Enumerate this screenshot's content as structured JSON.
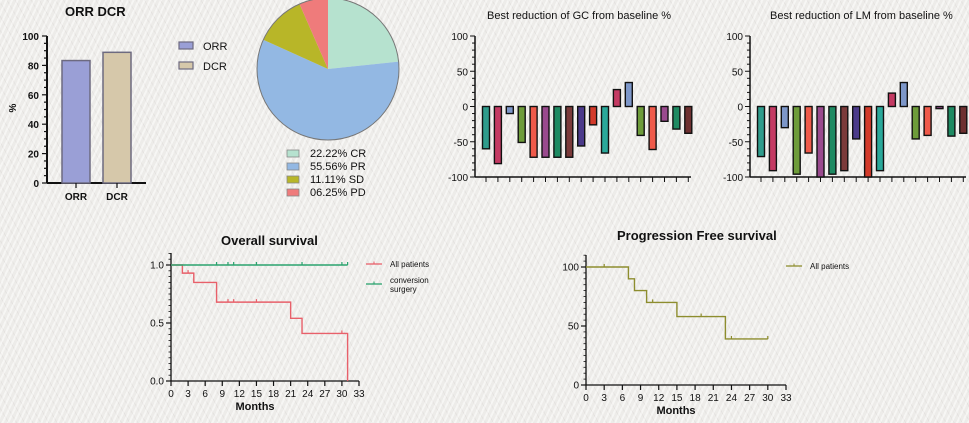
{
  "chart_data": [
    {
      "id": "orr_dcr",
      "type": "bar",
      "title": "ORR DCR",
      "ylabel": "%",
      "xlabel": "",
      "ylim": [
        0,
        100
      ],
      "yticks": [
        0,
        20,
        40,
        60,
        80,
        100
      ],
      "categories": [
        "ORR",
        "DCR"
      ],
      "values": [
        83.3,
        88.9
      ],
      "colors": [
        "#9a9fd6",
        "#d6c8aa"
      ],
      "legend": [
        {
          "label": "ORR",
          "color": "#9a9fd6"
        },
        {
          "label": "DCR",
          "color": "#d6c8aa"
        }
      ],
      "legend_position": "right"
    },
    {
      "id": "response_pie",
      "type": "pie",
      "slices": [
        {
          "label": "CR",
          "value": 22.22,
          "text": "22.22%  CR",
          "color": "#b6e2cf"
        },
        {
          "label": "PR",
          "value": 55.56,
          "text": "55.56%  PR",
          "color": "#93b8e3"
        },
        {
          "label": "SD",
          "value": 11.11,
          "text": "11.11%  SD",
          "color": "#b8b628"
        },
        {
          "label": "PD",
          "value": 6.25,
          "text": "06.25%  PD",
          "color": "#ef7b7b"
        }
      ],
      "legend_position": "bottom"
    },
    {
      "id": "gc_waterfall",
      "type": "bar",
      "title": "Best reduction of GC from baseline %",
      "ylim": [
        -100,
        100
      ],
      "yticks": [
        -100,
        -50,
        0,
        50,
        100
      ],
      "values": [
        -60,
        -81,
        -10,
        -51,
        -72,
        -72,
        -72,
        -72,
        -56,
        -26,
        -66,
        24,
        34,
        -41,
        -61,
        -21,
        -32,
        -38
      ]
    },
    {
      "id": "lm_waterfall",
      "type": "bar",
      "title": "Best reduction of LM from baseline %",
      "ylim": [
        -100,
        100
      ],
      "yticks": [
        -100,
        -50,
        0,
        50,
        100
      ],
      "values": [
        -71,
        -91,
        -30,
        -96,
        -66,
        -100,
        -96,
        -91,
        -46,
        -100,
        -91,
        19,
        34,
        -46,
        -41,
        -3,
        -42,
        -38
      ]
    },
    {
      "id": "overall_survival",
      "type": "line",
      "title": "Overall survival",
      "xlabel": "Months",
      "ylabel": "",
      "xlim": [
        0,
        33
      ],
      "ylim": [
        0,
        1.0
      ],
      "xticks": [
        0,
        3,
        6,
        9,
        12,
        15,
        18,
        21,
        24,
        27,
        30,
        33
      ],
      "yticks": [
        "0.0",
        "0.5",
        "1.0"
      ],
      "legend_position": "right",
      "series": [
        {
          "name": "All patients",
          "color": "#e8606a",
          "steps": [
            [
              0,
              1.0
            ],
            [
              2,
              0.93
            ],
            [
              4,
              0.85
            ],
            [
              8,
              0.68
            ],
            [
              21,
              0.54
            ],
            [
              23,
              0.41
            ],
            [
              31,
              0.0
            ]
          ],
          "end": 31,
          "censored": [
            [
              3,
              0.93
            ],
            [
              10,
              0.68
            ],
            [
              11,
              0.68
            ],
            [
              15,
              0.68
            ],
            [
              30,
              0.41
            ]
          ]
        },
        {
          "name": "conversion surgery",
          "color": "#2aa36e",
          "steps": [
            [
              0,
              1.0
            ]
          ],
          "end": 31,
          "censored": [
            [
              8,
              1.0
            ],
            [
              10,
              1.0
            ],
            [
              11,
              1.0
            ],
            [
              15,
              1.0
            ],
            [
              23,
              1.0
            ],
            [
              30,
              1.0
            ],
            [
              31,
              1.0
            ]
          ]
        }
      ]
    },
    {
      "id": "progression_free_survival",
      "type": "line",
      "title": "Progression Free survival",
      "xlabel": "Months",
      "ylabel": "",
      "xlim": [
        0,
        33
      ],
      "ylim": [
        0,
        100
      ],
      "xticks": [
        0,
        3,
        6,
        9,
        12,
        15,
        18,
        21,
        24,
        27,
        30,
        33
      ],
      "yticks": [
        "0",
        "50",
        "100"
      ],
      "legend_position": "top-right",
      "series": [
        {
          "name": "All patients",
          "color": "#8d8d2e",
          "steps": [
            [
              0,
              100
            ],
            [
              7,
              90
            ],
            [
              8,
              80
            ],
            [
              10,
              70
            ],
            [
              15,
              58
            ],
            [
              23,
              39
            ]
          ],
          "end": 30,
          "censored": [
            [
              3,
              100
            ],
            [
              11,
              70
            ],
            [
              19,
              58
            ],
            [
              24,
              39
            ],
            [
              30,
              39
            ]
          ]
        }
      ]
    }
  ],
  "waterfall_colors": [
    "#2f9c8c",
    "#c43a63",
    "#7d97c9",
    "#6e9c3a",
    "#ef5a4a",
    "#9a4a8e",
    "#1e8a62",
    "#7b3a3a",
    "#4b3a8a",
    "#d33a2a",
    "#2aa89a",
    "#c43a63",
    "#7d97c9",
    "#6e9c3a",
    "#ef5a4a",
    "#9a4a8e",
    "#1e8a62",
    "#6e3030"
  ]
}
